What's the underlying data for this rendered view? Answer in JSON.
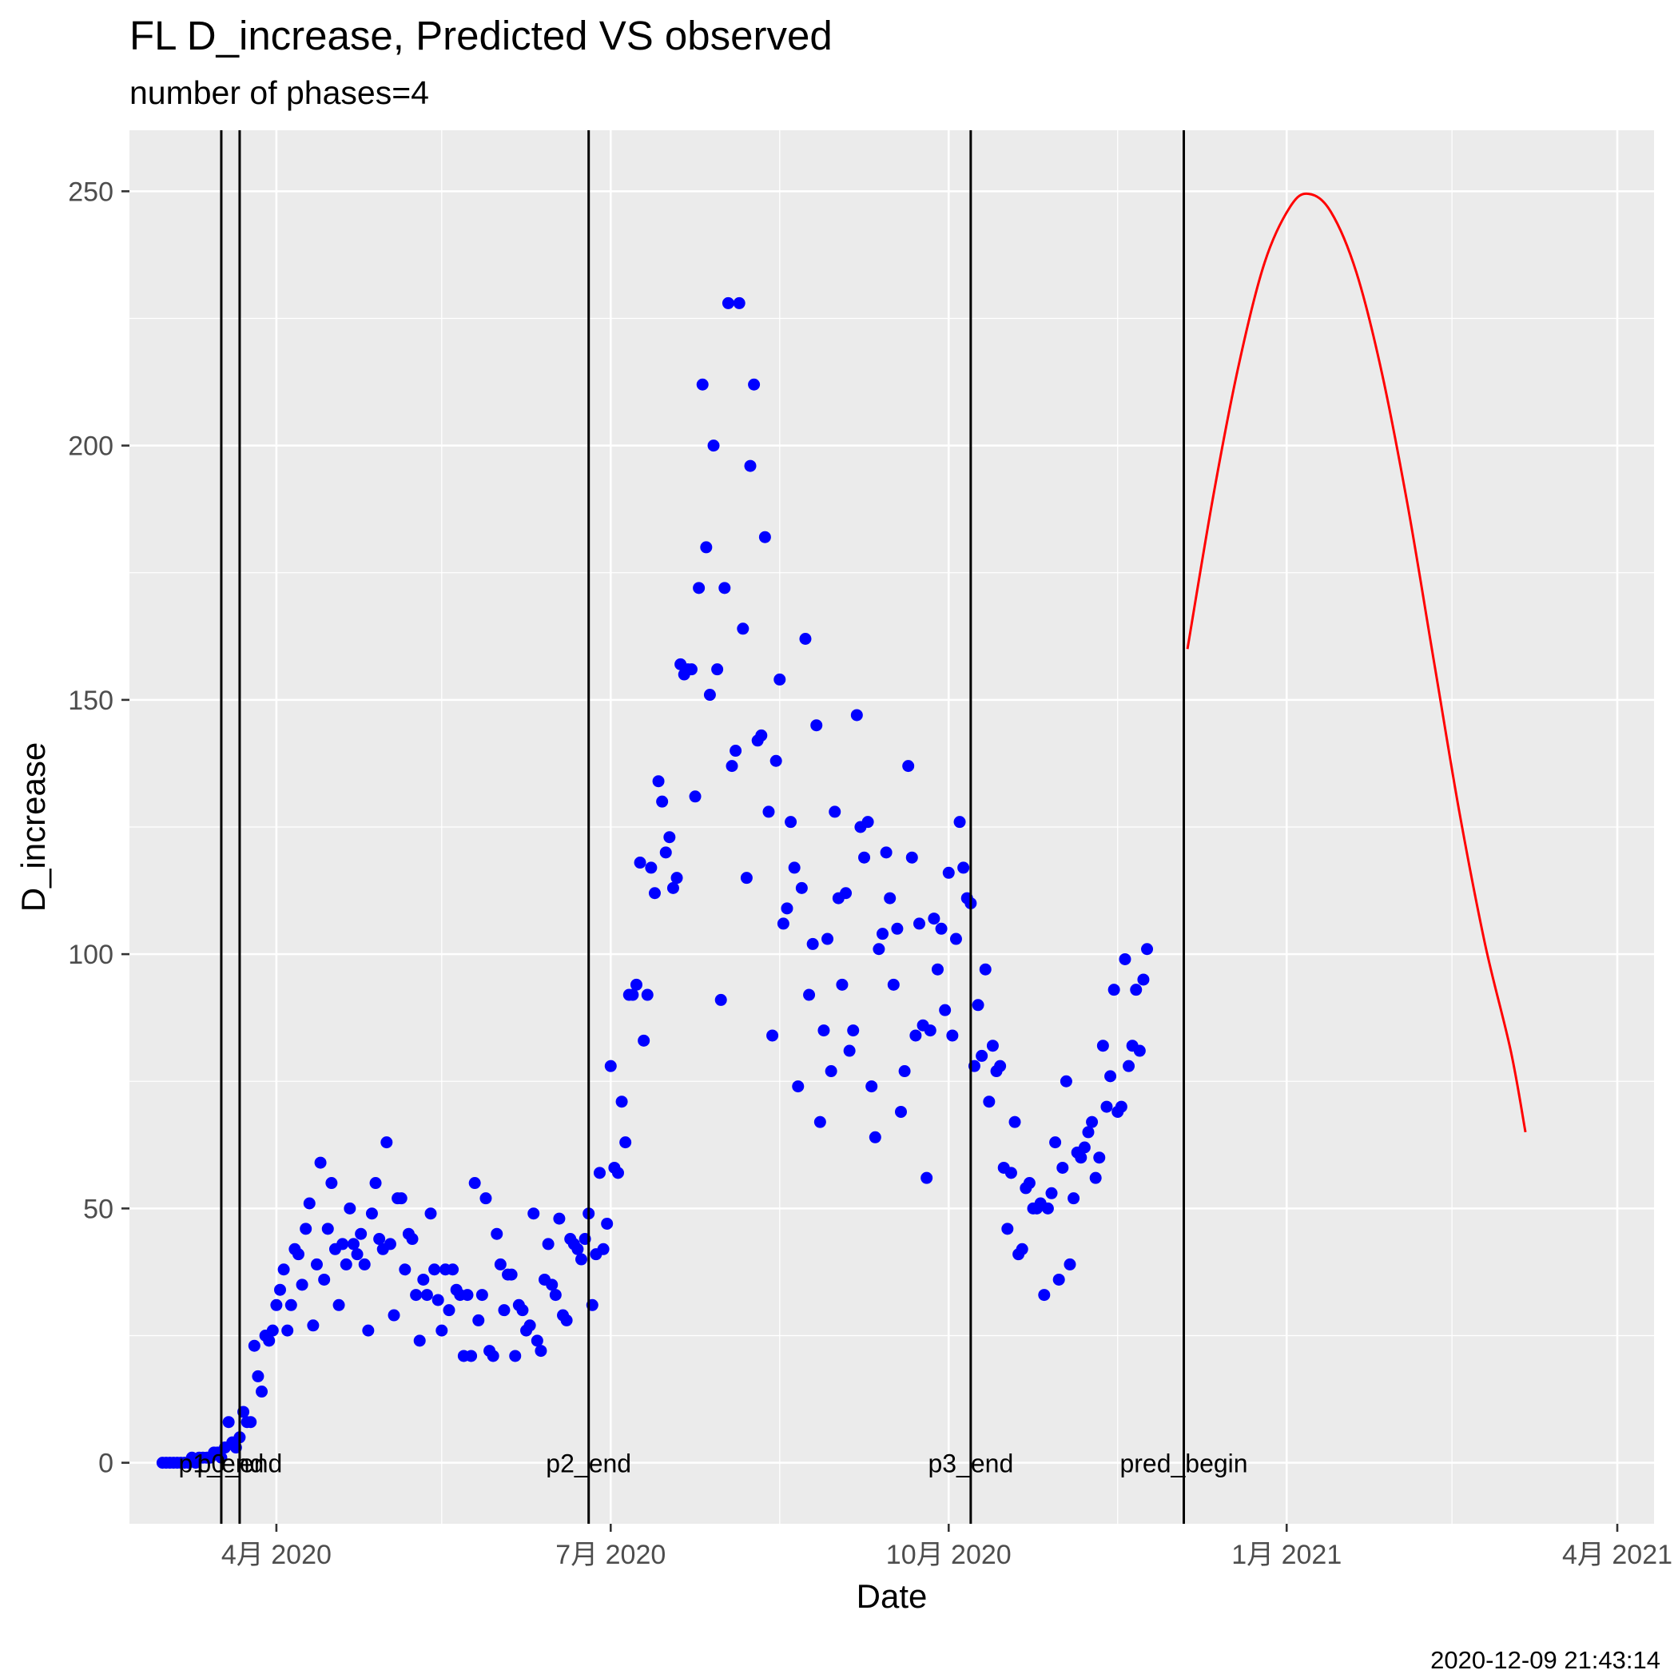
{
  "chart_data": {
    "type": "scatter",
    "title": "FL D_increase, Predicted VS observed",
    "subtitle": "number of phases=4",
    "xlabel": "Date",
    "ylabel": "D_increase",
    "footer": "2020-12-09 21:43:14",
    "xlim": [
      "2020-02-21",
      "2021-04-11"
    ],
    "ylim": [
      -12,
      262
    ],
    "x_ticks": [
      {
        "date": "2020-04-01",
        "label": "4月 2020"
      },
      {
        "date": "2020-07-01",
        "label": "7月 2020"
      },
      {
        "date": "2020-10-01",
        "label": "10月 2020"
      },
      {
        "date": "2021-01-01",
        "label": "1月 2021"
      },
      {
        "date": "2021-04-01",
        "label": "4月 2021"
      }
    ],
    "x_minor_ticks": [
      "2020-02-15",
      "2020-05-16",
      "2020-08-16",
      "2020-11-16",
      "2021-02-15"
    ],
    "y_ticks": [
      0,
      50,
      100,
      150,
      200,
      250
    ],
    "y_minor_ticks": [
      25,
      75,
      125,
      175,
      225
    ],
    "grid": true,
    "colors": {
      "observed": "#0000ff",
      "predicted": "#ff0000",
      "phase_lines": "#000000",
      "panel": "#ebebeb",
      "grid": "#ffffff"
    },
    "vlines": [
      {
        "date": "2020-03-17",
        "label": "p1_end"
      },
      {
        "date": "2020-03-22",
        "label": "p0_end"
      },
      {
        "date": "2020-06-25",
        "label": "p2_end"
      },
      {
        "date": "2020-10-07",
        "label": "p3_end"
      },
      {
        "date": "2020-12-04",
        "label": "pred_begin"
      }
    ],
    "observed_start": "2020-03-01",
    "observed": [
      0,
      0,
      0,
      0,
      0,
      0,
      0,
      0,
      1,
      0,
      1,
      1,
      1,
      1,
      2,
      2,
      1,
      3,
      8,
      4,
      3,
      5,
      10,
      8,
      8,
      23,
      17,
      14,
      25,
      24,
      26,
      31,
      34,
      38,
      26,
      31,
      42,
      41,
      35,
      46,
      51,
      27,
      39,
      59,
      36,
      46,
      55,
      42,
      31,
      43,
      39,
      50,
      43,
      41,
      45,
      39,
      26,
      49,
      55,
      44,
      42,
      63,
      43,
      29,
      52,
      52,
      38,
      45,
      44,
      33,
      24,
      36,
      33,
      49,
      38,
      32,
      26,
      38,
      30,
      38,
      34,
      33,
      21,
      33,
      21,
      55,
      28,
      33,
      52,
      22,
      21,
      45,
      39,
      30,
      37,
      37,
      21,
      31,
      30,
      26,
      27,
      49,
      24,
      22,
      36,
      43,
      35,
      33,
      48,
      29,
      28,
      44,
      43,
      42,
      40,
      44,
      49,
      31,
      41,
      57,
      42,
      47,
      78,
      58,
      57,
      71,
      63,
      92,
      92,
      94,
      118,
      83,
      92,
      117,
      112,
      134,
      130,
      120,
      123,
      113,
      115,
      157,
      155,
      156,
      156,
      131,
      172,
      212,
      180,
      151,
      200,
      156,
      91,
      172,
      228,
      137,
      140,
      228,
      164,
      115,
      196,
      212,
      142,
      143,
      182,
      128,
      84,
      138,
      154,
      106,
      109,
      126,
      117,
      74,
      113,
      162,
      92,
      102,
      145,
      67,
      85,
      103,
      77,
      128,
      111,
      94,
      112,
      81,
      85,
      147,
      125,
      119,
      126,
      74,
      64,
      101,
      104,
      120,
      111,
      94,
      105,
      69,
      77,
      137,
      119,
      84,
      106,
      86,
      56,
      85,
      107,
      97,
      105,
      89,
      116,
      84,
      103,
      126,
      117,
      111,
      110,
      78,
      90,
      80,
      97,
      71,
      82,
      77,
      78,
      58,
      46,
      57,
      67,
      41,
      42,
      54,
      55,
      50,
      50,
      51,
      33,
      50,
      53,
      63,
      36,
      58,
      75,
      39,
      52,
      61,
      60,
      62,
      65,
      67,
      56,
      60,
      82,
      70,
      76,
      93,
      69,
      70,
      99,
      78,
      82,
      93,
      81,
      95,
      101
    ],
    "predicted_start": "2020-12-05",
    "predicted": [
      {
        "x": "2020-12-05",
        "y": 160
      },
      {
        "x": "2020-12-12",
        "y": 190
      },
      {
        "x": "2020-12-19",
        "y": 216
      },
      {
        "x": "2020-12-26",
        "y": 236
      },
      {
        "x": "2021-01-02",
        "y": 247
      },
      {
        "x": "2021-01-07",
        "y": 249.5
      },
      {
        "x": "2021-01-13",
        "y": 246
      },
      {
        "x": "2021-01-20",
        "y": 234
      },
      {
        "x": "2021-01-27",
        "y": 214
      },
      {
        "x": "2021-02-03",
        "y": 188
      },
      {
        "x": "2021-02-10",
        "y": 158
      },
      {
        "x": "2021-02-17",
        "y": 128
      },
      {
        "x": "2021-02-24",
        "y": 102
      },
      {
        "x": "2021-03-03",
        "y": 81
      },
      {
        "x": "2021-03-07",
        "y": 65
      }
    ]
  }
}
